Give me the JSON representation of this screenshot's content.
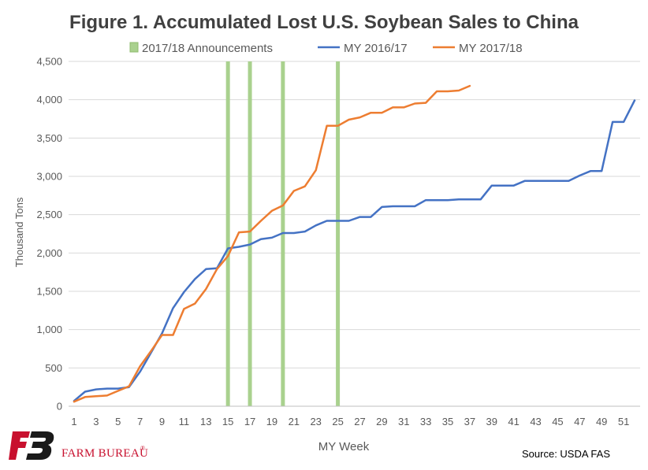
{
  "chart_data": {
    "type": "line",
    "title": "Figure 1. Accumulated Lost U.S. Soybean Sales to China",
    "xlabel": "MY Week",
    "ylabel": "Thousand Tons",
    "ylim": [
      0,
      4500
    ],
    "yticks": [
      "0",
      "500",
      "1,000",
      "1,500",
      "2,000",
      "2,500",
      "3,000",
      "3,500",
      "4,000",
      "4,500"
    ],
    "xticks": [
      "1",
      "3",
      "5",
      "7",
      "9",
      "11",
      "13",
      "15",
      "17",
      "19",
      "21",
      "23",
      "25",
      "27",
      "29",
      "31",
      "33",
      "35",
      "37",
      "39",
      "41",
      "43",
      "45",
      "47",
      "49",
      "51"
    ],
    "grid": true,
    "legend_position": "top",
    "announcements": {
      "name": "2017/18 Announcements",
      "color": "#a9d18e",
      "weeks": [
        15,
        17,
        20,
        25
      ]
    },
    "series": [
      {
        "name": "MY 2016/17",
        "color": "#4472c4",
        "x": [
          1,
          2,
          3,
          4,
          5,
          6,
          7,
          8,
          9,
          10,
          11,
          12,
          13,
          14,
          15,
          16,
          17,
          18,
          19,
          20,
          21,
          22,
          23,
          24,
          25,
          26,
          27,
          28,
          29,
          30,
          31,
          32,
          33,
          34,
          35,
          36,
          37,
          38,
          39,
          40,
          41,
          42,
          43,
          44,
          45,
          46,
          47,
          48,
          49,
          50,
          51,
          52
        ],
        "values": [
          70,
          190,
          220,
          230,
          230,
          250,
          450,
          700,
          950,
          1280,
          1490,
          1660,
          1790,
          1800,
          2060,
          2080,
          2110,
          2180,
          2200,
          2260,
          2260,
          2280,
          2360,
          2420,
          2420,
          2420,
          2470,
          2470,
          2600,
          2610,
          2610,
          2610,
          2690,
          2690,
          2690,
          2700,
          2700,
          2700,
          2880,
          2880,
          2880,
          2940,
          2940,
          2940,
          2940,
          2940,
          3010,
          3070,
          3070,
          3710,
          3710,
          3990
        ]
      },
      {
        "name": "MY 2017/18",
        "color": "#ed7d31",
        "x": [
          1,
          2,
          3,
          4,
          5,
          6,
          7,
          8,
          9,
          10,
          11,
          12,
          13,
          14,
          15,
          16,
          17,
          18,
          19,
          20,
          21,
          22,
          23,
          24,
          25,
          26,
          27,
          28,
          29,
          30,
          31,
          32,
          33,
          34,
          35,
          36,
          37
        ],
        "values": [
          60,
          120,
          130,
          140,
          200,
          260,
          520,
          720,
          930,
          930,
          1270,
          1340,
          1530,
          1790,
          1960,
          2270,
          2280,
          2420,
          2550,
          2620,
          2810,
          2870,
          3080,
          3660,
          3660,
          3740,
          3770,
          3830,
          3830,
          3900,
          3900,
          3950,
          3960,
          4110,
          4110,
          4120,
          4180
        ]
      }
    ]
  },
  "branding": {
    "logo_text": "FARM BUREAU",
    "trademark": "®",
    "logo_color": "#c8102e"
  },
  "source_text": "Source: USDA FAS"
}
